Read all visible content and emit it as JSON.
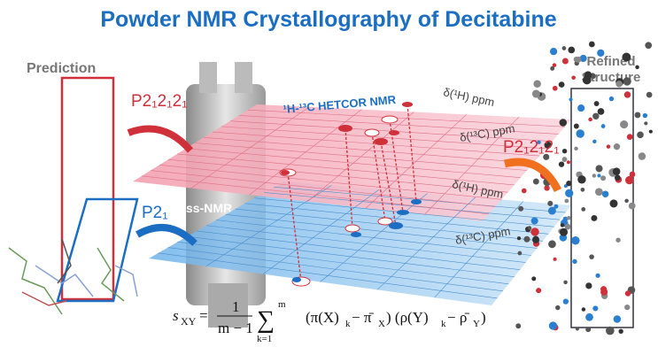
{
  "header": {
    "title": "Powder NMR Crystallography of Decitabine"
  },
  "labels": {
    "prediction": "Prediction",
    "refined_1": "Refined",
    "refined_2": "Structure",
    "space_group_left": "P2₁2₁2₁",
    "space_group_p21": "P2₁",
    "space_group_right": "P2₁2₁2₁",
    "hetcor": "¹H-¹³C  HETCOR NMR",
    "ssnmr": "ss-NMR",
    "top_h": "δ(¹H) ppm",
    "top_c": "δ(¹³C) ppm",
    "bottom_h": "δ(¹H) ppm",
    "bottom_c": "δ(¹³C) ppm"
  },
  "formula": {
    "s": "s",
    "s_sub": "XY",
    "eq": "=",
    "num": "1",
    "den": "m − 1",
    "sum": "∑",
    "sum_low": "k=1",
    "sum_high": "m",
    "t1": "(π(X)",
    "t1_sub": "k",
    "t2": " − π̄",
    "t2_sub": "X",
    "t3": ") (ρ(Y)",
    "t3_sub": "k",
    "t4": " − ρ̄",
    "t4_sub": "Y",
    "t5": ")"
  }
}
